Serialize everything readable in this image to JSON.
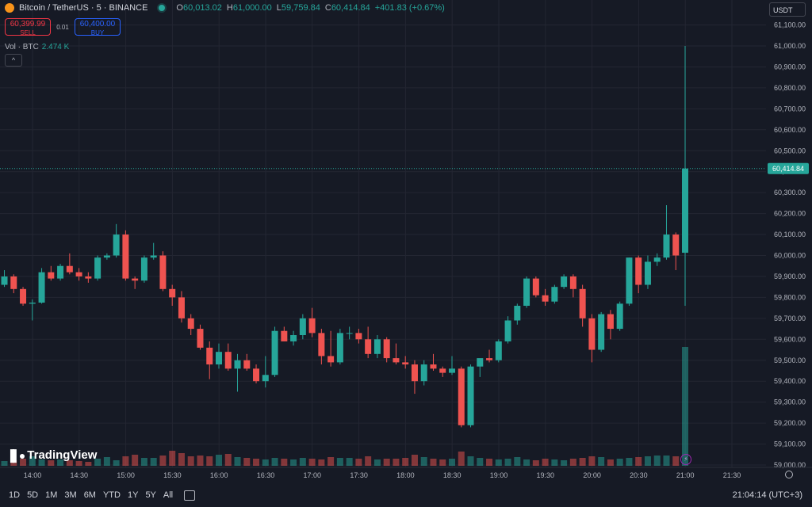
{
  "header": {
    "symbol": "Bitcoin / TetherUS · 5 · BINANCE",
    "open_label": "O",
    "open": "60,013.02",
    "high_label": "H",
    "high": "61,000.00",
    "low_label": "L",
    "low": "59,759.84",
    "close_label": "C",
    "close": "60,414.84",
    "change": "+401.83 (+0.67%)"
  },
  "trade": {
    "sell_price": "60,399.99",
    "sell_label": "SELL",
    "lot": "0.01",
    "buy_price": "60,400.00",
    "buy_label": "BUY"
  },
  "volume_label": "Vol · BTC",
  "volume_value": "2.474 K",
  "currency": "USDT",
  "collapse_icon": "chevron-up-icon",
  "brand": "TradingView",
  "ranges": [
    "1D",
    "5D",
    "1M",
    "3M",
    "6M",
    "YTD",
    "1Y",
    "5Y",
    "All"
  ],
  "clock": "21:04:14 (UTC+3)",
  "colors": {
    "up": "#26a69a",
    "down": "#ef5350",
    "background": "#161a25",
    "grid": "#232632"
  },
  "chart_data": {
    "type": "candlestick",
    "title": "Bitcoin / TetherUS · 5 · BINANCE",
    "y_ticks": [
      "59,000.00",
      "59,100.00",
      "59,200.00",
      "59,300.00",
      "59,400.00",
      "59,500.00",
      "59,600.00",
      "59,700.00",
      "59,800.00",
      "59,900.00",
      "60,000.00",
      "60,100.00",
      "60,200.00",
      "60,300.00",
      "60,400.00",
      "60,500.00",
      "60,600.00",
      "60,700.00",
      "60,800.00",
      "60,900.00",
      "61,000.00",
      "61,100.00"
    ],
    "y_tick_values": [
      59000,
      59100,
      59200,
      59300,
      59400,
      59500,
      59600,
      59700,
      59800,
      59900,
      60000,
      60100,
      60200,
      60300,
      60400,
      60500,
      60600,
      60700,
      60800,
      60900,
      61000,
      61100
    ],
    "x_ticks": [
      "14:00",
      "14:30",
      "15:00",
      "15:30",
      "16:00",
      "16:30",
      "17:00",
      "17:30",
      "18:00",
      "18:30",
      "19:00",
      "19:30",
      "20:00",
      "20:30",
      "21:00",
      "21:30"
    ],
    "ylim": [
      58950,
      61180
    ],
    "last_price": 60414.84,
    "last_price_label": "60,414.84",
    "candles": [
      [
        59885,
        59900,
        59840,
        59855
      ],
      [
        59855,
        59860,
        59810,
        59830
      ],
      [
        59830,
        59880,
        59820,
        59870
      ],
      [
        59870,
        59900,
        59840,
        59850
      ],
      [
        59850,
        59900,
        59840,
        59890
      ],
      [
        59890,
        59910,
        59850,
        59860
      ],
      [
        59860,
        59870,
        59830,
        59850
      ],
      [
        59850,
        59950,
        59840,
        59940
      ],
      [
        59940,
        59990,
        59920,
        59980
      ],
      [
        59980,
        60000,
        59960,
        59995
      ],
      [
        59995,
        60010,
        59970,
        59985
      ],
      [
        59985,
        60000,
        59940,
        59960
      ],
      [
        59960,
        59980,
        59930,
        59940
      ],
      [
        59940,
        59950,
        59900,
        59920
      ],
      [
        59920,
        59930,
        59870,
        59890
      ],
      [
        59890,
        59940,
        59870,
        59910
      ],
      [
        59910,
        59920,
        59850,
        59860
      ],
      [
        59860,
        59930,
        59850,
        59900
      ],
      [
        59900,
        59910,
        59820,
        59840
      ],
      [
        59840,
        59850,
        59760,
        59770
      ],
      [
        59770,
        59790,
        59690,
        59775
      ],
      [
        59775,
        59940,
        59770,
        59920
      ],
      [
        59920,
        59950,
        59880,
        59890
      ],
      [
        59890,
        59960,
        59880,
        59950
      ],
      [
        59950,
        60010,
        59910,
        59920
      ],
      [
        59920,
        59940,
        59880,
        59900
      ],
      [
        59900,
        59920,
        59870,
        59890
      ],
      [
        59890,
        60000,
        59880,
        59990
      ],
      [
        59990,
        60010,
        59980,
        60000
      ],
      [
        60000,
        60150,
        59990,
        60100
      ],
      [
        60100,
        60120,
        59880,
        59890
      ],
      [
        59890,
        59900,
        59840,
        59880
      ],
      [
        59880,
        60000,
        59870,
        59990
      ],
      [
        59990,
        60060,
        59980,
        60000
      ],
      [
        60000,
        60020,
        59830,
        59840
      ],
      [
        59840,
        59860,
        59760,
        59800
      ],
      [
        59800,
        59830,
        59680,
        59700
      ],
      [
        59700,
        59720,
        59620,
        59650
      ],
      [
        59650,
        59670,
        59550,
        59560
      ],
      [
        59560,
        59590,
        59410,
        59480
      ],
      [
        59480,
        59580,
        59460,
        59540
      ],
      [
        59540,
        59580,
        59450,
        59460
      ],
      [
        59460,
        59530,
        59350,
        59500
      ],
      [
        59500,
        59530,
        59450,
        59460
      ],
      [
        59460,
        59480,
        59390,
        59400
      ],
      [
        59400,
        59520,
        59370,
        59430
      ],
      [
        59430,
        59660,
        59420,
        59640
      ],
      [
        59640,
        59660,
        59590,
        59590
      ],
      [
        59590,
        59640,
        59570,
        59620
      ],
      [
        59620,
        59720,
        59600,
        59700
      ],
      [
        59700,
        59750,
        59610,
        59630
      ],
      [
        59630,
        59650,
        59480,
        59520
      ],
      [
        59520,
        59640,
        59470,
        59490
      ],
      [
        59490,
        59650,
        59480,
        59630
      ],
      [
        59630,
        59660,
        59600,
        59630
      ],
      [
        59630,
        59650,
        59580,
        59600
      ],
      [
        59600,
        59660,
        59510,
        59530
      ],
      [
        59530,
        59620,
        59510,
        59600
      ],
      [
        59600,
        59610,
        59490,
        59510
      ],
      [
        59510,
        59580,
        59480,
        59490
      ],
      [
        59490,
        59520,
        59460,
        59480
      ],
      [
        59480,
        59500,
        59340,
        59400
      ],
      [
        59400,
        59500,
        59380,
        59480
      ],
      [
        59480,
        59530,
        59450,
        59460
      ],
      [
        59460,
        59470,
        59420,
        59440
      ],
      [
        59440,
        59520,
        59430,
        59460
      ],
      [
        59460,
        59470,
        59180,
        59190
      ],
      [
        59190,
        59480,
        59180,
        59470
      ],
      [
        59470,
        59490,
        59420,
        59510
      ],
      [
        59510,
        59550,
        59490,
        59500
      ],
      [
        59500,
        59600,
        59490,
        59590
      ],
      [
        59590,
        59710,
        59580,
        59690
      ],
      [
        59690,
        59770,
        59670,
        59760
      ],
      [
        59760,
        59900,
        59750,
        59890
      ],
      [
        59890,
        59900,
        59800,
        59810
      ],
      [
        59810,
        59840,
        59760,
        59780
      ],
      [
        59780,
        59860,
        59770,
        59850
      ],
      [
        59850,
        59910,
        59840,
        59900
      ],
      [
        59900,
        59910,
        59800,
        59840
      ],
      [
        59840,
        59860,
        59660,
        59700
      ],
      [
        59700,
        59720,
        59490,
        59550
      ],
      [
        59550,
        59730,
        59540,
        59720
      ],
      [
        59720,
        59740,
        59600,
        59650
      ],
      [
        59650,
        59780,
        59640,
        59770
      ],
      [
        59770,
        59990,
        59760,
        59990
      ],
      [
        59990,
        60000,
        59820,
        59860
      ],
      [
        59860,
        60000,
        59840,
        59970
      ],
      [
        59970,
        60010,
        59950,
        59990
      ],
      [
        59990,
        60240,
        59980,
        60100
      ],
      [
        60100,
        60110,
        59930,
        60000
      ],
      [
        60013.02,
        61000,
        59759.84,
        60414.84
      ]
    ],
    "volumes": [
      8,
      6,
      5,
      6,
      6,
      7,
      5,
      7,
      6,
      6,
      7,
      6,
      7,
      6,
      6,
      7,
      8,
      6,
      7,
      9,
      12,
      8,
      7,
      8,
      7,
      6,
      5,
      9,
      11,
      7,
      12,
      14,
      10,
      10,
      13,
      19,
      16,
      12,
      13,
      12,
      14,
      15,
      11,
      10,
      9,
      8,
      10,
      9,
      8,
      10,
      9,
      8,
      11,
      10,
      10,
      9,
      12,
      8,
      9,
      9,
      10,
      14,
      11,
      9,
      8,
      9,
      18,
      12,
      10,
      9,
      8,
      9,
      11,
      8,
      7,
      9,
      8,
      7,
      9,
      10,
      12,
      11,
      8,
      9,
      10,
      11,
      12,
      13,
      13,
      12,
      150
    ],
    "volume_ylim": [
      0,
      400
    ]
  }
}
